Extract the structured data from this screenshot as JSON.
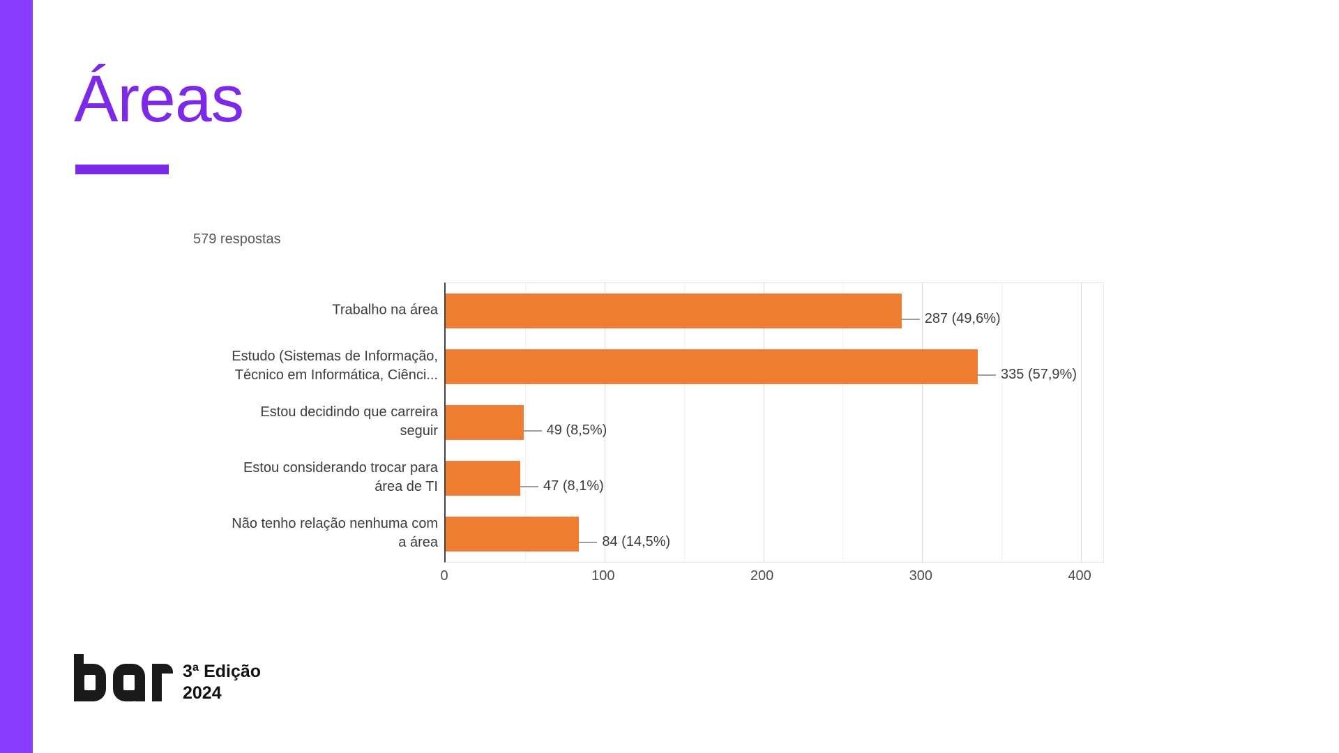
{
  "slide": {
    "title": "Áreas"
  },
  "colors": {
    "sidebar": "#8B3DFF",
    "accent": "#7D2AE8",
    "bar": "#EE7D31",
    "axis": "#424242",
    "grid-major": "#d9d9d9",
    "grid-minor": "#f0f0f0",
    "text": "#3c3c3c",
    "subtitle": "#575757",
    "logo": "#1a1a1a"
  },
  "chart_data": {
    "type": "bar",
    "orientation": "horizontal",
    "subtitle": "579 respostas",
    "categories": [
      "Trabalho na área",
      "Estudo (Sistemas de Informação, Técnico em Informática, Ciênci...",
      "Estou decidindo que carreira seguir",
      "Estou considerando trocar para área de TI",
      "Não tenho relação nenhuma com a área"
    ],
    "categories_lines": [
      [
        "Trabalho na área"
      ],
      [
        "Estudo (Sistemas de Informação,",
        "Técnico em Informática, Ciênci..."
      ],
      [
        "Estou decidindo que carreira",
        "seguir"
      ],
      [
        "Estou considerando trocar para",
        "área de TI"
      ],
      [
        "Não tenho relação nenhuma com",
        "a área"
      ]
    ],
    "values": [
      287,
      335,
      49,
      47,
      84
    ],
    "value_labels": [
      "287 (49,6%)",
      "335 (57,9%)",
      "49 (8,5%)",
      "47 (8,1%)",
      "84 (14,5%)"
    ],
    "xlim": [
      0,
      414
    ],
    "xticks": [
      0,
      100,
      200,
      300,
      400
    ],
    "minor_ticks": [
      50,
      150,
      250,
      350
    ],
    "grid": true,
    "legend": "none",
    "bar_color": "#EE7D31"
  },
  "footer": {
    "logo_text": "bar",
    "edition_line1": "3ª Edição",
    "edition_line2": "2024"
  }
}
